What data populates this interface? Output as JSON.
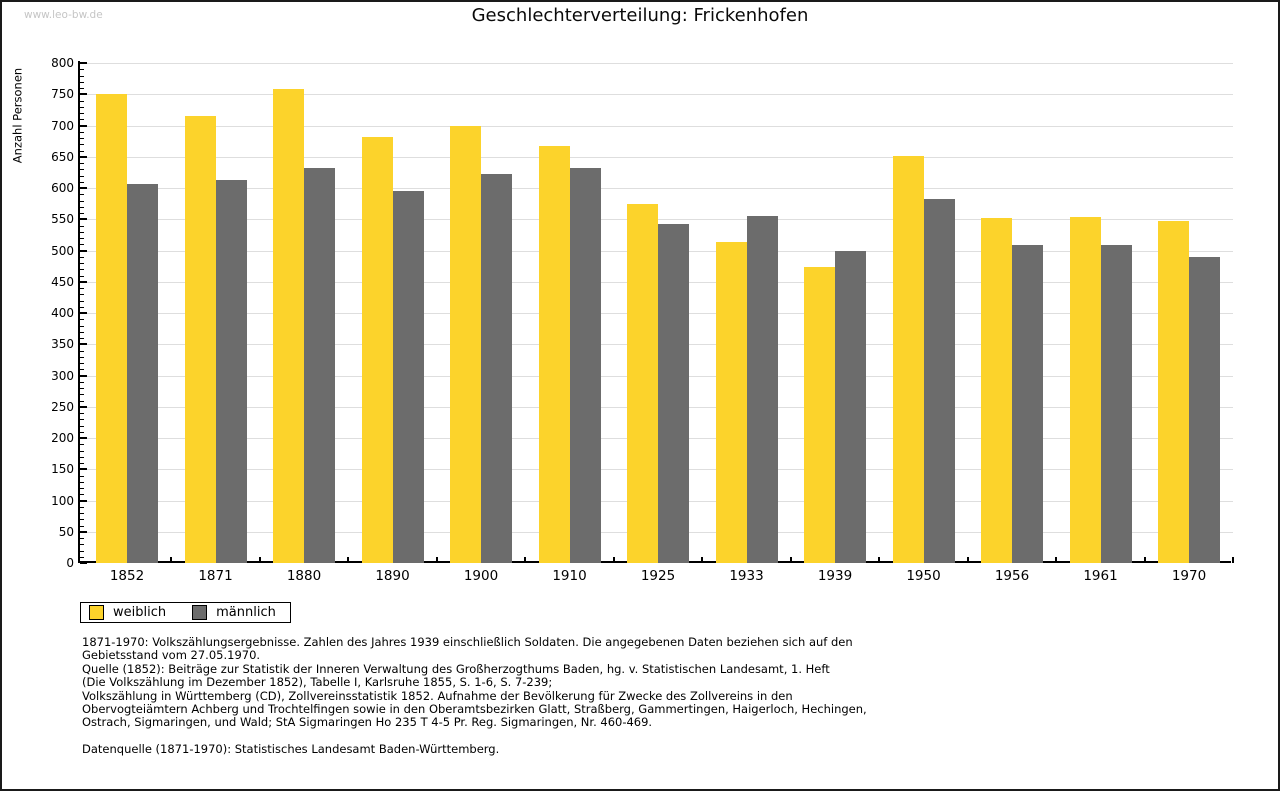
{
  "page": {
    "watermark": "www.leo-bw.de",
    "title": "Geschlechterverteilung: Frickenhofen"
  },
  "chart_data": {
    "type": "bar",
    "title": "Geschlechterverteilung: Frickenhofen",
    "xlabel": "",
    "ylabel": "Anzahl Personen",
    "ylim": [
      0,
      800
    ],
    "ytick_step": 50,
    "ytick_minor_step": 10,
    "grid": true,
    "legend_position": "bottom-left",
    "categories": [
      "1852",
      "1871",
      "1880",
      "1890",
      "1900",
      "1910",
      "1925",
      "1933",
      "1939",
      "1950",
      "1956",
      "1961",
      "1970"
    ],
    "series": [
      {
        "name": "weiblich",
        "color": "#FCD32B",
        "values": [
          751,
          715,
          758,
          682,
          700,
          667,
          575,
          514,
          474,
          652,
          552,
          554,
          547
        ]
      },
      {
        "name": "männlich",
        "color": "#6C6C6C",
        "values": [
          607,
          613,
          632,
          595,
          622,
          632,
          542,
          555,
          500,
          582,
          509,
          509,
          490
        ]
      }
    ]
  },
  "colors": {
    "gridline": "#DEDEDE",
    "axis": "#000000",
    "watermark_text": "#C5C5C5"
  },
  "footer": {
    "lines": [
      "1871-1970: Volkszählungsergebnisse. Zahlen des Jahres 1939 einschließlich Soldaten. Die angegebenen Daten beziehen sich auf den",
      "Gebietsstand vom 27.05.1970.",
      "Quelle (1852): Beiträge zur Statistik der Inneren Verwaltung des Großherzogthums Baden, hg. v. Statistischen Landesamt, 1. Heft",
      "(Die Volkszählung im Dezember 1852), Tabelle I, Karlsruhe 1855, S. 1-6, S. 7-239;",
      "Volkszählung in Württemberg (CD), Zollvereinsstatistik 1852. Aufnahme der Bevölkerung für Zwecke des Zollvereins in den",
      "Obervogteiämtern Achberg und Trochtelfingen sowie in den Oberamtsbezirken Glatt, Straßberg, Gammertingen, Haigerloch, Hechingen,",
      "Ostrach, Sigmaringen, und Wald; StA Sigmaringen Ho 235 T 4-5 Pr. Reg. Sigmaringen, Nr. 460-469.",
      "",
      "Datenquelle (1871-1970): Statistisches Landesamt Baden-Württemberg."
    ]
  }
}
